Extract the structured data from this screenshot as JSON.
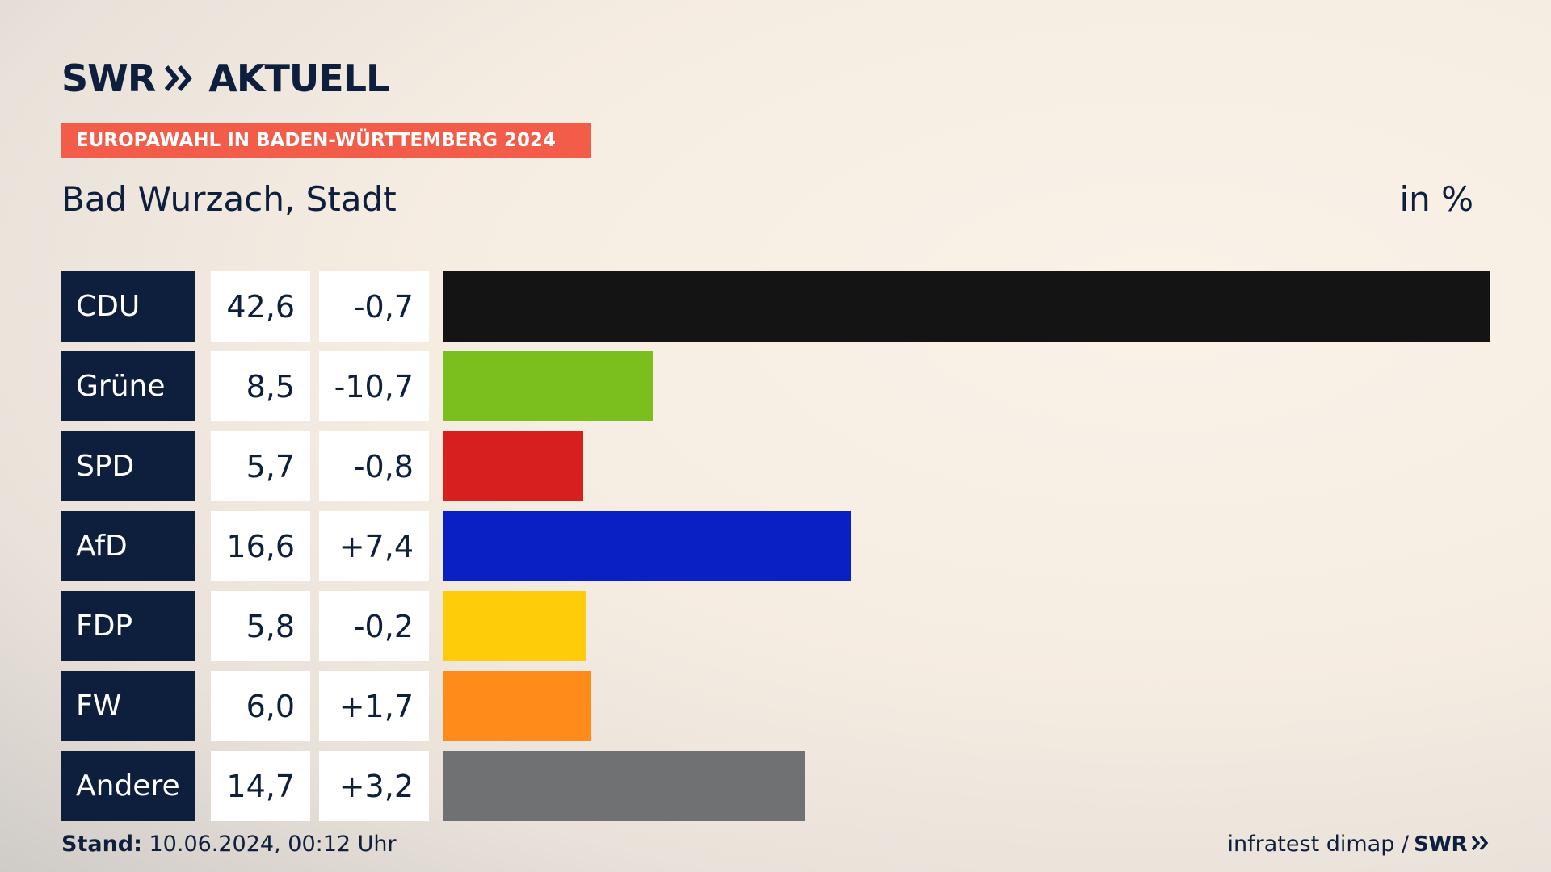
{
  "header": {
    "brand_swr": "SWR",
    "brand_aktuell": "AKTUELL",
    "tag": "EUROPAWAHL IN BADEN-WÜRTTEMBERG 2024",
    "subtitle": "Bad Wurzach, Stadt",
    "unit": "in %"
  },
  "footer": {
    "stand_label": "Stand:",
    "stand_value": " 10.06.2024, 00:12 Uhr",
    "source": "infratest dimap /",
    "source_brand": "SWR"
  },
  "colors": {
    "navy": "#0e1e3d",
    "tag": "#f25c48"
  },
  "chart_data": {
    "type": "bar",
    "orientation": "horizontal",
    "categories": [
      "CDU",
      "Grüne",
      "SPD",
      "AfD",
      "FDP",
      "FW",
      "Andere"
    ],
    "values": [
      42.6,
      8.5,
      5.7,
      16.6,
      5.8,
      6.0,
      14.7
    ],
    "value_labels": [
      "42,6",
      "8,5",
      "5,7",
      "16,6",
      "5,8",
      "6,0",
      "14,7"
    ],
    "diff_labels": [
      "-0,7",
      "-10,7",
      "-0,8",
      "+7,4",
      "-0,2",
      "+1,7",
      "+3,2"
    ],
    "colors": [
      "#141414",
      "#7bbf1f",
      "#d81f1f",
      "#0a1fc4",
      "#ffcc0a",
      "#ff8c1a",
      "#707173"
    ],
    "xlim": [
      0,
      42.6
    ]
  }
}
